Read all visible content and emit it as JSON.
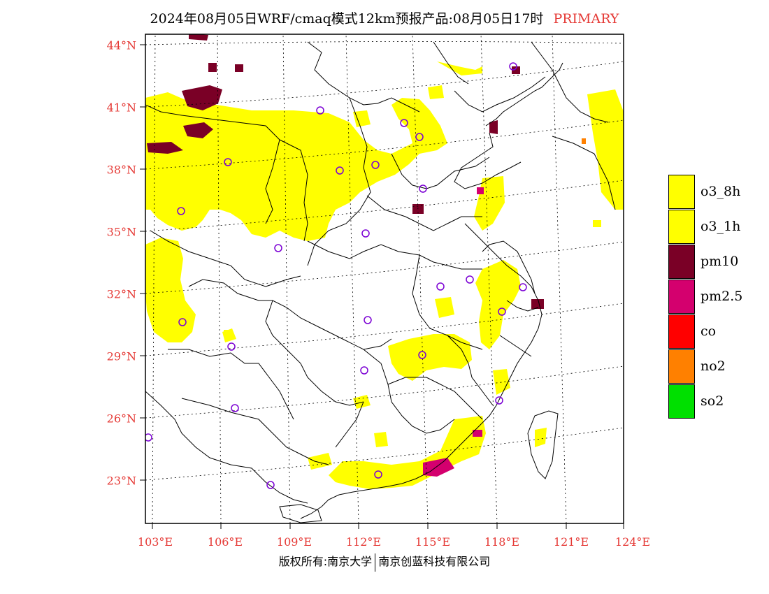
{
  "title": {
    "main": "2024年08月05日WRF/cmaq模式12km预报产品:08月05日17时",
    "tag": "PRIMARY"
  },
  "map": {
    "lat_ticks": [
      "44°N",
      "41°N",
      "38°N",
      "35°N",
      "32°N",
      "29°N",
      "26°N",
      "23°N"
    ],
    "lon_ticks": [
      "103°E",
      "106°E",
      "109°E",
      "112°E",
      "115°E",
      "118°E",
      "121°E",
      "124°E"
    ],
    "lat_range": [
      21,
      44.5
    ],
    "lon_range": [
      102.8,
      124
    ],
    "graticule": "dotted",
    "map_elements": [
      "province-boundaries",
      "coastline",
      "city-markers",
      "pollutant-grid"
    ]
  },
  "legend": {
    "items": [
      {
        "label": "o3_8h",
        "color": "#ffff00"
      },
      {
        "label": "o3_1h",
        "color": "#ffff00"
      },
      {
        "label": "pm10",
        "color": "#7a0026"
      },
      {
        "label": "pm2.5",
        "color": "#d4006e"
      },
      {
        "label": "co",
        "color": "#ff0000"
      },
      {
        "label": "no2",
        "color": "#ff8000"
      },
      {
        "label": "so2",
        "color": "#00e000"
      }
    ]
  },
  "footer": {
    "left": "版权所有:南京大学",
    "right": "南京创蓝科技有限公司"
  },
  "colors": {
    "axis_label": "#e53935",
    "city_marker": "#7b00d4",
    "o3": "#ffff00",
    "pm10": "#7a0026",
    "pm25": "#d4006e",
    "no2": "#ff8000"
  }
}
